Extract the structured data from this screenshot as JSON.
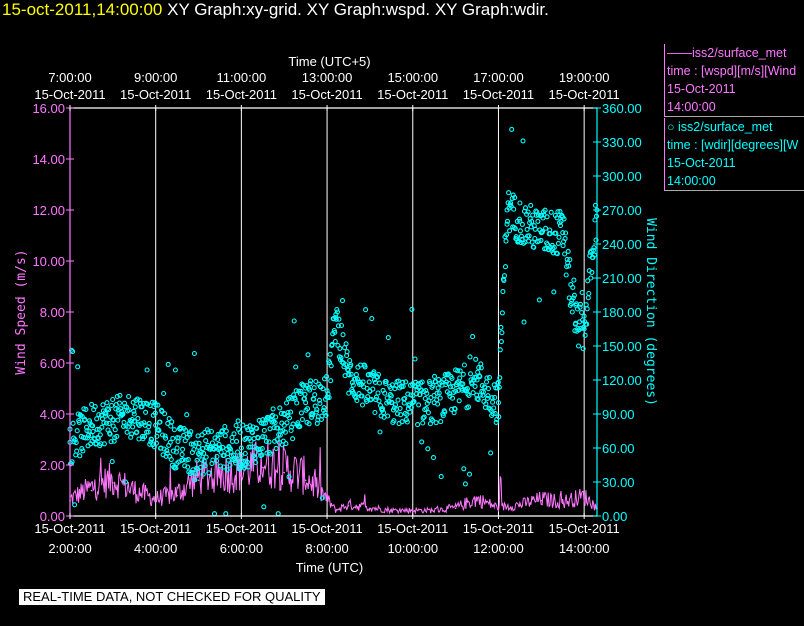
{
  "header": {
    "timestamp": "15-oct-2011,14:00:00",
    "graphs": "XY Graph:xy-grid.  XY Graph:wspd.  XY Graph:wdir."
  },
  "legend": [
    {
      "line1": "——iss2/surface_met",
      "line2": "time : [wspd][m/s][Wind",
      "line3": "15-Oct-2011",
      "line4": "14:00:00"
    },
    {
      "line1": "○ iss2/surface_met",
      "line2": "time : [wdir][degrees][W",
      "line3": "15-Oct-2011",
      "line4": "14:00:00"
    }
  ],
  "disclaimer": "REAL-TIME DATA, NOT CHECKED FOR QUALITY",
  "colors": {
    "speed": "#ff77ff",
    "direction": "#00ffff",
    "grid": "#ffffff",
    "background": "#000000",
    "title_time": "#ffff00"
  },
  "chart_data": {
    "type": "line+scatter",
    "title": "XY Graph",
    "top_axis_label": "Time (UTC+5)",
    "top_ticks": [
      {
        "t": 0,
        "time": "7:00:00",
        "date": "15-Oct-2011"
      },
      {
        "t": 2,
        "time": "9:00:00",
        "date": "15-Oct-2011"
      },
      {
        "t": 4,
        "time": "11:00:00",
        "date": "15-Oct-2011"
      },
      {
        "t": 6,
        "time": "13:00:00",
        "date": "15-Oct-2011"
      },
      {
        "t": 8,
        "time": "15:00:00",
        "date": "15-Oct-2011"
      },
      {
        "t": 10,
        "time": "17:00:00",
        "date": "15-Oct-2011"
      },
      {
        "t": 12,
        "time": "19:00:00",
        "date": "15-Oct-2011"
      }
    ],
    "bottom_axis_label": "Time (UTC)",
    "bottom_ticks": [
      {
        "t": 0,
        "date": "15-Oct-2011",
        "time": "2:00:00"
      },
      {
        "t": 2,
        "date": "15-Oct-2011",
        "time": "4:00:00"
      },
      {
        "t": 4,
        "date": "15-Oct-2011",
        "time": "6:00:00"
      },
      {
        "t": 6,
        "date": "15-Oct-2011",
        "time": "8:00:00"
      },
      {
        "t": 8,
        "date": "15-Oct-2011",
        "time": "10:00:00"
      },
      {
        "t": 10,
        "date": "15-Oct-2011",
        "time": "12:00:00"
      },
      {
        "t": 12,
        "date": "15-Oct-2011",
        "time": "14:00:00"
      }
    ],
    "xlim_hours_from_0200UTC": [
      0,
      12.3
    ],
    "left_axis": {
      "label": "Wind Speed (m/s)",
      "ylim": [
        0,
        16
      ],
      "ticks": [
        "0.00",
        "2.00",
        "4.00",
        "6.00",
        "8.00",
        "10.00",
        "12.00",
        "14.00",
        "16.00"
      ]
    },
    "right_axis": {
      "label": "Wind Direction (degrees)",
      "ylim": [
        0,
        360
      ],
      "ticks": [
        "0.00",
        "30.00",
        "60.00",
        "90.00",
        "120.00",
        "150.00",
        "180.00",
        "210.00",
        "240.00",
        "270.00",
        "300.00",
        "330.00",
        "360.00"
      ]
    },
    "series": [
      {
        "name": "wspd",
        "style": "line",
        "color": "#ff77ff",
        "x": [
          0,
          0.5,
          1,
          1.5,
          2,
          2.5,
          3,
          3.5,
          4,
          4.5,
          5,
          5.5,
          6,
          6.2,
          6.5,
          7,
          7.5,
          8,
          8.5,
          9,
          9.5,
          10,
          10.5,
          11,
          11.5,
          12,
          12.3
        ],
        "y": [
          0.6,
          1.0,
          1.3,
          0.9,
          0.6,
          0.8,
          1.4,
          1.5,
          1.6,
          1.9,
          1.7,
          1.4,
          0.6,
          0.2,
          0.4,
          0.3,
          0.2,
          0.2,
          0.2,
          0.3,
          0.6,
          0.3,
          0.4,
          0.6,
          0.5,
          0.7,
          0.3
        ]
      },
      {
        "name": "wdir",
        "style": "markers",
        "color": "#00ffff",
        "x": [
          0,
          0.5,
          1,
          1.5,
          2,
          2.5,
          3,
          3.5,
          4,
          4.5,
          5,
          5.5,
          6,
          6.2,
          6.5,
          7,
          7.5,
          8,
          8.5,
          9,
          9.5,
          10,
          10.2,
          10.5,
          11,
          11.5,
          11.8,
          12,
          12.3
        ],
        "y": [
          65,
          80,
          85,
          90,
          80,
          60,
          55,
          60,
          60,
          70,
          80,
          100,
          105,
          175,
          125,
          110,
          100,
          100,
          100,
          110,
          120,
          100,
          270,
          260,
          250,
          250,
          170,
          165,
          270
        ]
      }
    ]
  }
}
